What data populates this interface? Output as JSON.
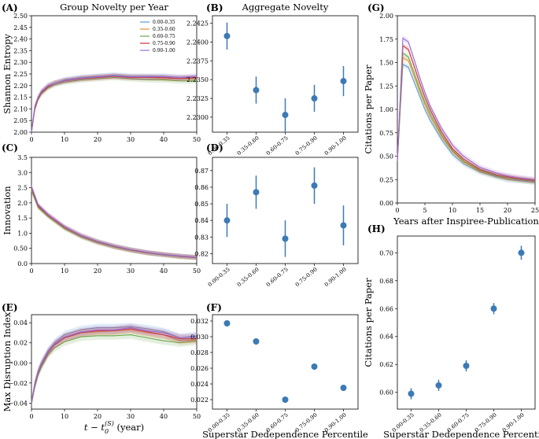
{
  "legend_title": "",
  "colors": {
    "0.00-0.35": "#5b9bd5",
    "0.35-0.60": "#e69138",
    "0.60-0.75": "#6aa84f",
    "0.75-0.90": "#cc3333",
    "0.90-1.00": "#9b6dd6",
    "point": "#3d7ab5"
  },
  "shared": {
    "xlabel_time": "t − t0(S) (year)",
    "xlabel_percentile": "Superstar Dedependence Percentile",
    "categories": [
      "0.00-0.35",
      "0.35-0.60",
      "0.60-0.75",
      "0.75-0.90",
      "0.90-1.00"
    ]
  },
  "chart_data": [
    {
      "panel": "(A)",
      "type": "line",
      "title": "Group Novelty per Year",
      "xlabel": "",
      "ylabel": "Shannon Entropy",
      "xlim": [
        0,
        50
      ],
      "ylim": [
        2.0,
        2.5
      ],
      "xticks": [
        0,
        10,
        20,
        30,
        40,
        50
      ],
      "yticks": [
        2.0,
        2.05,
        2.1,
        2.15,
        2.2,
        2.25,
        2.3,
        2.35,
        2.4,
        2.45,
        2.5
      ],
      "legend": [
        "0.00-0.35",
        "0.35-0.60",
        "0.60-0.75",
        "0.75-0.90",
        "0.90-1.00"
      ],
      "legend_position": "top-right",
      "series": [
        {
          "name": "0.00-0.35",
          "x": [
            0,
            1,
            2,
            3,
            5,
            7,
            10,
            15,
            20,
            25,
            30,
            35,
            40,
            45,
            50
          ],
          "values": [
            2.0,
            2.11,
            2.15,
            2.175,
            2.2,
            2.21,
            2.225,
            2.235,
            2.24,
            2.245,
            2.24,
            2.24,
            2.24,
            2.235,
            2.235
          ]
        },
        {
          "name": "0.35-0.60",
          "x": [
            0,
            1,
            2,
            3,
            5,
            7,
            10,
            15,
            20,
            25,
            30,
            35,
            40,
            45,
            50
          ],
          "values": [
            2.0,
            2.1,
            2.145,
            2.17,
            2.195,
            2.21,
            2.22,
            2.23,
            2.235,
            2.24,
            2.235,
            2.235,
            2.23,
            2.23,
            2.23
          ]
        },
        {
          "name": "0.60-0.75",
          "x": [
            0,
            1,
            2,
            3,
            5,
            7,
            10,
            15,
            20,
            25,
            30,
            35,
            40,
            45,
            50
          ],
          "values": [
            2.0,
            2.1,
            2.14,
            2.165,
            2.19,
            2.205,
            2.215,
            2.225,
            2.23,
            2.235,
            2.23,
            2.225,
            2.225,
            2.22,
            2.22
          ]
        },
        {
          "name": "0.75-0.90",
          "x": [
            0,
            1,
            2,
            3,
            5,
            7,
            10,
            15,
            20,
            25,
            30,
            35,
            40,
            45,
            50
          ],
          "values": [
            2.0,
            2.1,
            2.145,
            2.17,
            2.195,
            2.21,
            2.22,
            2.23,
            2.235,
            2.24,
            2.235,
            2.235,
            2.235,
            2.23,
            2.235
          ]
        },
        {
          "name": "0.90-1.00",
          "x": [
            0,
            1,
            2,
            3,
            5,
            7,
            10,
            15,
            20,
            25,
            30,
            35,
            40,
            45,
            50
          ],
          "values": [
            2.0,
            2.11,
            2.15,
            2.175,
            2.2,
            2.21,
            2.222,
            2.232,
            2.238,
            2.242,
            2.238,
            2.238,
            2.238,
            2.235,
            2.24
          ]
        }
      ]
    },
    {
      "panel": "(B)",
      "type": "scatter",
      "title": "Aggregate Novelty",
      "xlabel": "",
      "ylabel": "",
      "ylim": [
        2.228,
        2.2435
      ],
      "yticks": [
        2.23,
        2.2325,
        2.235,
        2.2375,
        2.24,
        2.2425
      ],
      "ytick_labels": [
        "2.2300",
        "2.2325",
        "2.2350",
        "2.2375",
        "2.2400",
        "2.2425"
      ],
      "categories": [
        "0.00-0.35",
        "0.35-0.60",
        "0.60-0.75",
        "0.75-0.90",
        "0.90-1.00"
      ],
      "values": [
        2.2408,
        2.2336,
        2.2303,
        2.2325,
        2.2348
      ],
      "errors": [
        0.0018,
        0.0018,
        0.0022,
        0.0018,
        0.002
      ]
    },
    {
      "panel": "(C)",
      "type": "line",
      "title": "",
      "xlabel": "",
      "ylabel": "Innovation",
      "xlim": [
        0,
        50
      ],
      "ylim": [
        0,
        3.5
      ],
      "xticks": [
        0,
        10,
        20,
        30,
        40,
        50
      ],
      "yticks": [
        0,
        0.5,
        1.0,
        1.5,
        2.0,
        2.5,
        3.0,
        3.5
      ],
      "series": [
        {
          "name": "0.00-0.35",
          "x": [
            0,
            2,
            5,
            10,
            15,
            20,
            25,
            30,
            35,
            40,
            45,
            50
          ],
          "values": [
            2.5,
            1.9,
            1.6,
            1.2,
            0.92,
            0.72,
            0.57,
            0.45,
            0.36,
            0.3,
            0.24,
            0.2
          ]
        },
        {
          "name": "0.35-0.60",
          "x": [
            0,
            2,
            5,
            10,
            15,
            20,
            25,
            30,
            35,
            40,
            45,
            50
          ],
          "values": [
            2.45,
            1.88,
            1.58,
            1.18,
            0.9,
            0.7,
            0.55,
            0.44,
            0.35,
            0.29,
            0.23,
            0.2
          ]
        },
        {
          "name": "0.60-0.75",
          "x": [
            0,
            2,
            5,
            10,
            15,
            20,
            25,
            30,
            35,
            40,
            45,
            50
          ],
          "values": [
            2.4,
            1.85,
            1.55,
            1.15,
            0.88,
            0.69,
            0.55,
            0.44,
            0.35,
            0.28,
            0.23,
            0.19
          ]
        },
        {
          "name": "0.75-0.90",
          "x": [
            0,
            2,
            5,
            10,
            15,
            20,
            25,
            30,
            35,
            40,
            45,
            50
          ],
          "values": [
            2.5,
            1.9,
            1.6,
            1.2,
            0.92,
            0.72,
            0.57,
            0.45,
            0.36,
            0.3,
            0.24,
            0.2
          ]
        },
        {
          "name": "0.90-1.00",
          "x": [
            0,
            2,
            5,
            10,
            15,
            20,
            25,
            30,
            35,
            40,
            45,
            50
          ],
          "values": [
            2.55,
            1.95,
            1.62,
            1.22,
            0.93,
            0.73,
            0.58,
            0.46,
            0.37,
            0.3,
            0.25,
            0.21
          ]
        }
      ]
    },
    {
      "panel": "(D)",
      "type": "scatter",
      "title": "",
      "xlabel": "",
      "ylabel": "",
      "ylim": [
        0.814,
        0.878
      ],
      "yticks": [
        0.82,
        0.83,
        0.84,
        0.85,
        0.86,
        0.87
      ],
      "ytick_labels": [
        "0.82",
        "0.83",
        "0.84",
        "0.85",
        "0.86",
        "0.87"
      ],
      "categories": [
        "0.00-0.35",
        "0.35-0.60",
        "0.60-0.75",
        "0.75-0.90",
        "0.90-1.00"
      ],
      "values": [
        0.84,
        0.857,
        0.829,
        0.861,
        0.837
      ],
      "errors": [
        0.01,
        0.01,
        0.011,
        0.011,
        0.012
      ]
    },
    {
      "panel": "(E)",
      "type": "line",
      "title": "",
      "xlabel": "t − t0(S) (year)",
      "ylabel": "Max Disruption Index",
      "xlim": [
        0,
        50
      ],
      "ylim": [
        -0.046,
        0.048
      ],
      "xticks": [
        0,
        10,
        20,
        30,
        40,
        50
      ],
      "yticks": [
        -0.04,
        -0.02,
        0.0,
        0.02,
        0.04
      ],
      "ytick_labels": [
        "−0.04",
        "−0.02",
        "0.00",
        "0.02",
        "0.04"
      ],
      "series": [
        {
          "name": "0.00-0.35",
          "x": [
            0,
            1,
            2,
            3,
            5,
            7,
            10,
            15,
            20,
            25,
            30,
            35,
            40,
            45,
            50
          ],
          "values": [
            -0.04,
            -0.02,
            -0.008,
            0.0,
            0.012,
            0.02,
            0.028,
            0.033,
            0.035,
            0.035,
            0.036,
            0.034,
            0.031,
            0.025,
            0.027
          ]
        },
        {
          "name": "0.35-0.60",
          "x": [
            0,
            1,
            2,
            3,
            5,
            7,
            10,
            15,
            20,
            25,
            30,
            35,
            40,
            45,
            50
          ],
          "values": [
            -0.04,
            -0.022,
            -0.01,
            -0.002,
            0.01,
            0.018,
            0.025,
            0.03,
            0.031,
            0.032,
            0.033,
            0.03,
            0.028,
            0.022,
            0.023
          ]
        },
        {
          "name": "0.60-0.75",
          "x": [
            0,
            1,
            2,
            3,
            5,
            7,
            10,
            15,
            20,
            25,
            30,
            35,
            40,
            45,
            50
          ],
          "values": [
            -0.04,
            -0.024,
            -0.012,
            -0.004,
            0.008,
            0.015,
            0.021,
            0.026,
            0.027,
            0.027,
            0.028,
            0.025,
            0.022,
            0.02,
            0.022
          ]
        },
        {
          "name": "0.75-0.90",
          "x": [
            0,
            1,
            2,
            3,
            5,
            7,
            10,
            15,
            20,
            25,
            30,
            35,
            40,
            45,
            50
          ],
          "values": [
            -0.04,
            -0.022,
            -0.01,
            -0.002,
            0.01,
            0.018,
            0.025,
            0.03,
            0.032,
            0.032,
            0.034,
            0.031,
            0.028,
            0.024,
            0.024
          ]
        },
        {
          "name": "0.90-1.00",
          "x": [
            0,
            1,
            2,
            3,
            5,
            7,
            10,
            15,
            20,
            25,
            30,
            35,
            40,
            45,
            50
          ],
          "values": [
            -0.04,
            -0.021,
            -0.009,
            -0.001,
            0.011,
            0.019,
            0.026,
            0.031,
            0.033,
            0.033,
            0.035,
            0.032,
            0.03,
            0.025,
            0.026
          ]
        }
      ]
    },
    {
      "panel": "(F)",
      "type": "scatter",
      "title": "",
      "xlabel": "Superstar Dedependence Percentile",
      "ylabel": "",
      "ylim": [
        0.0208,
        0.0328
      ],
      "yticks": [
        0.022,
        0.024,
        0.026,
        0.028,
        0.03,
        0.032
      ],
      "ytick_labels": [
        "0.022",
        "0.024",
        "0.026",
        "0.028",
        "0.030",
        "0.032"
      ],
      "categories": [
        "0.00-0.35",
        "0.35-0.60",
        "0.60-0.75",
        "0.75-0.90",
        "0.90-1.00"
      ],
      "values": [
        0.0317,
        0.0294,
        0.022,
        0.0262,
        0.0235
      ],
      "errors": [
        0.0004,
        0.0004,
        0.0004,
        0.0004,
        0.0004
      ]
    },
    {
      "panel": "(G)",
      "type": "line",
      "title": "",
      "xlabel": "Years after Inspiree-Publication",
      "ylabel": "Citations per Paper",
      "xlim": [
        0,
        25
      ],
      "ylim": [
        0,
        2.0
      ],
      "xticks": [
        0,
        5,
        10,
        15,
        20,
        25
      ],
      "yticks": [
        0,
        0.25,
        0.5,
        0.75,
        1.0,
        1.25,
        1.5,
        1.75,
        2.0
      ],
      "ytick_labels": [
        "0.00",
        "0.25",
        "0.50",
        "0.75",
        "1.00",
        "1.25",
        "1.50",
        "1.75",
        "2.00"
      ],
      "series": [
        {
          "name": "0.00-0.35",
          "x": [
            0,
            1,
            2,
            3,
            4,
            5,
            6,
            8,
            10,
            12,
            15,
            18,
            20,
            22,
            25
          ],
          "values": [
            0.45,
            1.48,
            1.45,
            1.3,
            1.15,
            1.0,
            0.88,
            0.68,
            0.52,
            0.42,
            0.33,
            0.28,
            0.25,
            0.24,
            0.22
          ]
        },
        {
          "name": "0.35-0.60",
          "x": [
            0,
            1,
            2,
            3,
            4,
            5,
            6,
            8,
            10,
            12,
            15,
            18,
            20,
            22,
            25
          ],
          "values": [
            0.45,
            1.55,
            1.52,
            1.36,
            1.2,
            1.05,
            0.92,
            0.71,
            0.55,
            0.44,
            0.34,
            0.29,
            0.26,
            0.25,
            0.23
          ]
        },
        {
          "name": "0.60-0.75",
          "x": [
            0,
            1,
            2,
            3,
            4,
            5,
            6,
            8,
            10,
            12,
            15,
            18,
            20,
            22,
            25
          ],
          "values": [
            0.45,
            1.6,
            1.56,
            1.4,
            1.23,
            1.08,
            0.95,
            0.73,
            0.56,
            0.45,
            0.35,
            0.29,
            0.27,
            0.25,
            0.23
          ]
        },
        {
          "name": "0.75-0.90",
          "x": [
            0,
            1,
            2,
            3,
            4,
            5,
            6,
            8,
            10,
            12,
            15,
            18,
            20,
            22,
            25
          ],
          "values": [
            0.45,
            1.68,
            1.64,
            1.47,
            1.29,
            1.13,
            0.99,
            0.76,
            0.58,
            0.47,
            0.36,
            0.3,
            0.28,
            0.26,
            0.24
          ]
        },
        {
          "name": "0.90-1.00",
          "x": [
            0,
            1,
            2,
            3,
            4,
            5,
            6,
            8,
            10,
            12,
            15,
            18,
            20,
            22,
            25
          ],
          "values": [
            0.45,
            1.76,
            1.72,
            1.54,
            1.35,
            1.18,
            1.03,
            0.8,
            0.62,
            0.5,
            0.38,
            0.32,
            0.29,
            0.27,
            0.25
          ]
        }
      ]
    },
    {
      "panel": "(H)",
      "type": "scatter",
      "title": "",
      "xlabel": "Superstar Dedependence Percentile",
      "ylabel": "Citations per Paper",
      "ylim": [
        0.588,
        0.712
      ],
      "yticks": [
        0.6,
        0.62,
        0.64,
        0.66,
        0.68,
        0.7
      ],
      "ytick_labels": [
        "0.60",
        "0.62",
        "0.64",
        "0.66",
        "0.68",
        "0.70"
      ],
      "categories": [
        "0.00-0.35",
        "0.35-0.60",
        "0.60-0.75",
        "0.75-0.90",
        "0.90-1.00"
      ],
      "values": [
        0.599,
        0.605,
        0.619,
        0.66,
        0.7
      ],
      "errors": [
        0.004,
        0.004,
        0.004,
        0.004,
        0.005
      ]
    }
  ]
}
